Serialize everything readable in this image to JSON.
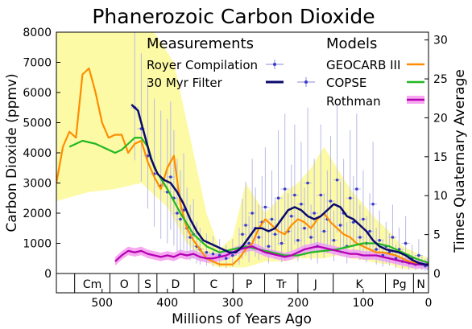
{
  "chart_data": {
    "type": "line",
    "title": "Phanerozoic Carbon Dioxide",
    "xlabel": "Millions of Years Ago",
    "ylabel": "Carbon Dioxide (ppmv)",
    "y2label": "Times Quaternary Average",
    "xlim": [
      570,
      0
    ],
    "ylim": [
      0,
      8000
    ],
    "y2lim": [
      0,
      31
    ],
    "x_ticks": [
      500,
      400,
      300,
      200,
      100,
      0
    ],
    "y_ticks": [
      0,
      1000,
      2000,
      3000,
      4000,
      5000,
      6000,
      7000,
      8000
    ],
    "y2_ticks": [
      0,
      5,
      10,
      15,
      20,
      25,
      30
    ],
    "legend": {
      "measurements_header": "Measurements",
      "models_header": "Models",
      "royer": "Royer Compilation",
      "filter": "30 Myr Filter",
      "geocarb": "GEOCARB III",
      "copse": "COPSE",
      "rothman": "Rothman"
    },
    "periods": [
      {
        "label": "Cm",
        "start": 542,
        "end": 488
      },
      {
        "label": "O",
        "start": 488,
        "end": 444
      },
      {
        "label": "S",
        "start": 444,
        "end": 416
      },
      {
        "label": "D",
        "start": 416,
        "end": 359
      },
      {
        "label": "C",
        "start": 359,
        "end": 299
      },
      {
        "label": "P",
        "start": 299,
        "end": 251
      },
      {
        "label": "Tr",
        "start": 251,
        "end": 200
      },
      {
        "label": "J",
        "start": 200,
        "end": 146
      },
      {
        "label": "K",
        "start": 146,
        "end": 66
      },
      {
        "label": "Pg",
        "start": 66,
        "end": 23
      },
      {
        "label": "N",
        "start": 23,
        "end": 0
      }
    ],
    "geocarb_band": {
      "upper": [
        [
          570,
          8000
        ],
        [
          480,
          8000
        ],
        [
          420,
          8000
        ],
        [
          390,
          7000
        ],
        [
          360,
          4000
        ],
        [
          340,
          2000
        ],
        [
          320,
          800
        ],
        [
          300,
          1200
        ],
        [
          280,
          3000
        ],
        [
          250,
          2000
        ],
        [
          220,
          2700
        ],
        [
          200,
          3000
        ],
        [
          180,
          3500
        ],
        [
          160,
          4200
        ],
        [
          140,
          3500
        ],
        [
          120,
          2800
        ],
        [
          100,
          2300
        ],
        [
          80,
          1800
        ],
        [
          60,
          1400
        ],
        [
          40,
          900
        ],
        [
          20,
          700
        ],
        [
          0,
          500
        ]
      ],
      "lower": [
        [
          570,
          2400
        ],
        [
          520,
          2700
        ],
        [
          480,
          2800
        ],
        [
          440,
          3000
        ],
        [
          400,
          2200
        ],
        [
          370,
          1000
        ],
        [
          340,
          350
        ],
        [
          320,
          200
        ],
        [
          300,
          200
        ],
        [
          280,
          200
        ],
        [
          250,
          400
        ],
        [
          220,
          400
        ],
        [
          200,
          500
        ],
        [
          180,
          500
        ],
        [
          160,
          500
        ],
        [
          140,
          600
        ],
        [
          120,
          500
        ],
        [
          100,
          450
        ],
        [
          80,
          350
        ],
        [
          60,
          300
        ],
        [
          40,
          150
        ],
        [
          20,
          150
        ],
        [
          0,
          150
        ]
      ]
    },
    "series": [
      {
        "name": "GEOCARB III",
        "color": "#ff8c00",
        "points": [
          [
            570,
            3000
          ],
          [
            560,
            4200
          ],
          [
            550,
            4700
          ],
          [
            540,
            4500
          ],
          [
            530,
            6600
          ],
          [
            520,
            6800
          ],
          [
            510,
            6000
          ],
          [
            500,
            5000
          ],
          [
            490,
            4500
          ],
          [
            480,
            4600
          ],
          [
            470,
            4600
          ],
          [
            460,
            4000
          ],
          [
            450,
            4300
          ],
          [
            440,
            4400
          ],
          [
            430,
            3700
          ],
          [
            420,
            3200
          ],
          [
            410,
            2800
          ],
          [
            400,
            3500
          ],
          [
            390,
            3900
          ],
          [
            380,
            2300
          ],
          [
            370,
            1500
          ],
          [
            360,
            1100
          ],
          [
            350,
            800
          ],
          [
            340,
            500
          ],
          [
            320,
            300
          ],
          [
            300,
            300
          ],
          [
            290,
            500
          ],
          [
            280,
            800
          ],
          [
            270,
            1000
          ],
          [
            260,
            1500
          ],
          [
            250,
            1800
          ],
          [
            240,
            1600
          ],
          [
            230,
            1400
          ],
          [
            220,
            1300
          ],
          [
            210,
            1600
          ],
          [
            200,
            1800
          ],
          [
            190,
            1700
          ],
          [
            180,
            1500
          ],
          [
            170,
            1800
          ],
          [
            160,
            2000
          ],
          [
            150,
            1700
          ],
          [
            140,
            1500
          ],
          [
            130,
            1300
          ],
          [
            120,
            1200
          ],
          [
            110,
            1000
          ],
          [
            100,
            900
          ],
          [
            90,
            800
          ],
          [
            80,
            700
          ],
          [
            70,
            700
          ],
          [
            60,
            650
          ],
          [
            50,
            600
          ],
          [
            40,
            500
          ],
          [
            30,
            400
          ],
          [
            20,
            350
          ],
          [
            10,
            300
          ],
          [
            0,
            300
          ]
        ]
      },
      {
        "name": "COPSE",
        "color": "#22b822",
        "points": [
          [
            550,
            4200
          ],
          [
            530,
            4400
          ],
          [
            510,
            4300
          ],
          [
            490,
            4100
          ],
          [
            480,
            4000
          ],
          [
            470,
            4100
          ],
          [
            460,
            4300
          ],
          [
            450,
            4500
          ],
          [
            440,
            4500
          ],
          [
            430,
            4200
          ],
          [
            420,
            3500
          ],
          [
            400,
            2800
          ],
          [
            380,
            2000
          ],
          [
            360,
            1300
          ],
          [
            340,
            900
          ],
          [
            320,
            700
          ],
          [
            300,
            800
          ],
          [
            280,
            900
          ],
          [
            260,
            800
          ],
          [
            240,
            700
          ],
          [
            220,
            600
          ],
          [
            200,
            600
          ],
          [
            180,
            700
          ],
          [
            160,
            750
          ],
          [
            140,
            800
          ],
          [
            120,
            900
          ],
          [
            100,
            1000
          ],
          [
            80,
            1000
          ],
          [
            60,
            900
          ],
          [
            40,
            700
          ],
          [
            20,
            500
          ],
          [
            0,
            350
          ]
        ]
      },
      {
        "name": "Rothman",
        "color": "#b300b3",
        "points": [
          [
            480,
            400
          ],
          [
            470,
            600
          ],
          [
            460,
            750
          ],
          [
            450,
            700
          ],
          [
            440,
            750
          ],
          [
            430,
            650
          ],
          [
            420,
            600
          ],
          [
            410,
            550
          ],
          [
            400,
            600
          ],
          [
            390,
            550
          ],
          [
            380,
            650
          ],
          [
            370,
            600
          ],
          [
            360,
            650
          ],
          [
            350,
            550
          ],
          [
            340,
            500
          ],
          [
            330,
            500
          ],
          [
            320,
            550
          ],
          [
            310,
            600
          ],
          [
            300,
            700
          ],
          [
            290,
            800
          ],
          [
            280,
            850
          ],
          [
            270,
            900
          ],
          [
            260,
            800
          ],
          [
            250,
            700
          ],
          [
            240,
            650
          ],
          [
            230,
            600
          ],
          [
            220,
            550
          ],
          [
            210,
            600
          ],
          [
            200,
            700
          ],
          [
            190,
            800
          ],
          [
            180,
            850
          ],
          [
            170,
            900
          ],
          [
            160,
            850
          ],
          [
            150,
            800
          ],
          [
            140,
            750
          ],
          [
            130,
            700
          ],
          [
            120,
            650
          ],
          [
            110,
            650
          ],
          [
            100,
            600
          ],
          [
            90,
            600
          ],
          [
            80,
            600
          ],
          [
            70,
            550
          ],
          [
            60,
            500
          ],
          [
            50,
            450
          ],
          [
            40,
            400
          ],
          [
            30,
            350
          ],
          [
            20,
            300
          ],
          [
            10,
            300
          ],
          [
            0,
            280
          ]
        ]
      },
      {
        "name": "30 Myr Filter",
        "color": "#0a0a6e",
        "points": [
          [
            455,
            5600
          ],
          [
            445,
            5400
          ],
          [
            435,
            4600
          ],
          [
            425,
            3800
          ],
          [
            415,
            3300
          ],
          [
            405,
            3100
          ],
          [
            395,
            3000
          ],
          [
            385,
            2700
          ],
          [
            375,
            2300
          ],
          [
            365,
            1800
          ],
          [
            355,
            1400
          ],
          [
            345,
            1100
          ],
          [
            335,
            1000
          ],
          [
            325,
            900
          ],
          [
            315,
            800
          ],
          [
            305,
            700
          ],
          [
            295,
            700
          ],
          [
            285,
            900
          ],
          [
            275,
            1200
          ],
          [
            265,
            1500
          ],
          [
            255,
            1500
          ],
          [
            245,
            1400
          ],
          [
            235,
            1500
          ],
          [
            225,
            1800
          ],
          [
            215,
            2100
          ],
          [
            205,
            2200
          ],
          [
            195,
            2100
          ],
          [
            185,
            1900
          ],
          [
            175,
            1800
          ],
          [
            165,
            1900
          ],
          [
            155,
            2100
          ],
          [
            145,
            2300
          ],
          [
            135,
            2200
          ],
          [
            125,
            1900
          ],
          [
            115,
            1800
          ],
          [
            105,
            1600
          ],
          [
            95,
            1400
          ],
          [
            85,
            1100
          ],
          [
            75,
            900
          ],
          [
            65,
            800
          ],
          [
            55,
            750
          ],
          [
            45,
            700
          ],
          [
            35,
            600
          ],
          [
            25,
            450
          ],
          [
            15,
            350
          ],
          [
            5,
            300
          ],
          [
            0,
            300
          ]
        ]
      }
    ],
    "royer_points": [
      [
        450,
        5500
      ],
      [
        440,
        4800
      ],
      [
        430,
        3900
      ],
      [
        420,
        3300
      ],
      [
        410,
        2900
      ],
      [
        400,
        2700
      ],
      [
        395,
        3200
      ],
      [
        390,
        2500
      ],
      [
        385,
        2000
      ],
      [
        380,
        1800
      ],
      [
        375,
        2100
      ],
      [
        370,
        1500
      ],
      [
        365,
        1200
      ],
      [
        360,
        1300
      ],
      [
        355,
        900
      ],
      [
        350,
        800
      ],
      [
        340,
        700
      ],
      [
        330,
        650
      ],
      [
        320,
        600
      ],
      [
        310,
        500
      ],
      [
        300,
        600
      ],
      [
        290,
        800
      ],
      [
        285,
        1300
      ],
      [
        280,
        1600
      ],
      [
        275,
        1000
      ],
      [
        270,
        2000
      ],
      [
        265,
        1500
      ],
      [
        260,
        1200
      ],
      [
        255,
        1700
      ],
      [
        250,
        2200
      ],
      [
        245,
        900
      ],
      [
        240,
        1800
      ],
      [
        235,
        1300
      ],
      [
        230,
        2500
      ],
      [
        225,
        1000
      ],
      [
        220,
        2800
      ],
      [
        215,
        1400
      ],
      [
        210,
        1900
      ],
      [
        205,
        2600
      ],
      [
        200,
        1100
      ],
      [
        195,
        2300
      ],
      [
        190,
        1500
      ],
      [
        185,
        3000
      ],
      [
        180,
        1200
      ],
      [
        175,
        2000
      ],
      [
        170,
        900
      ],
      [
        165,
        2600
      ],
      [
        160,
        1400
      ],
      [
        155,
        1800
      ],
      [
        150,
        2400
      ],
      [
        145,
        1100
      ],
      [
        140,
        3100
      ],
      [
        135,
        1600
      ],
      [
        130,
        2000
      ],
      [
        125,
        900
      ],
      [
        120,
        2500
      ],
      [
        115,
        1700
      ],
      [
        110,
        2800
      ],
      [
        105,
        1200
      ],
      [
        100,
        1800
      ],
      [
        95,
        1000
      ],
      [
        90,
        1400
      ],
      [
        85,
        2300
      ],
      [
        80,
        800
      ],
      [
        75,
        1100
      ],
      [
        70,
        600
      ],
      [
        65,
        900
      ],
      [
        60,
        700
      ],
      [
        55,
        1200
      ],
      [
        50,
        500
      ],
      [
        45,
        800
      ],
      [
        40,
        400
      ],
      [
        35,
        1000
      ],
      [
        30,
        350
      ],
      [
        25,
        500
      ],
      [
        20,
        300
      ],
      [
        15,
        600
      ],
      [
        10,
        300
      ],
      [
        5,
        250
      ],
      [
        2,
        280
      ]
    ]
  }
}
